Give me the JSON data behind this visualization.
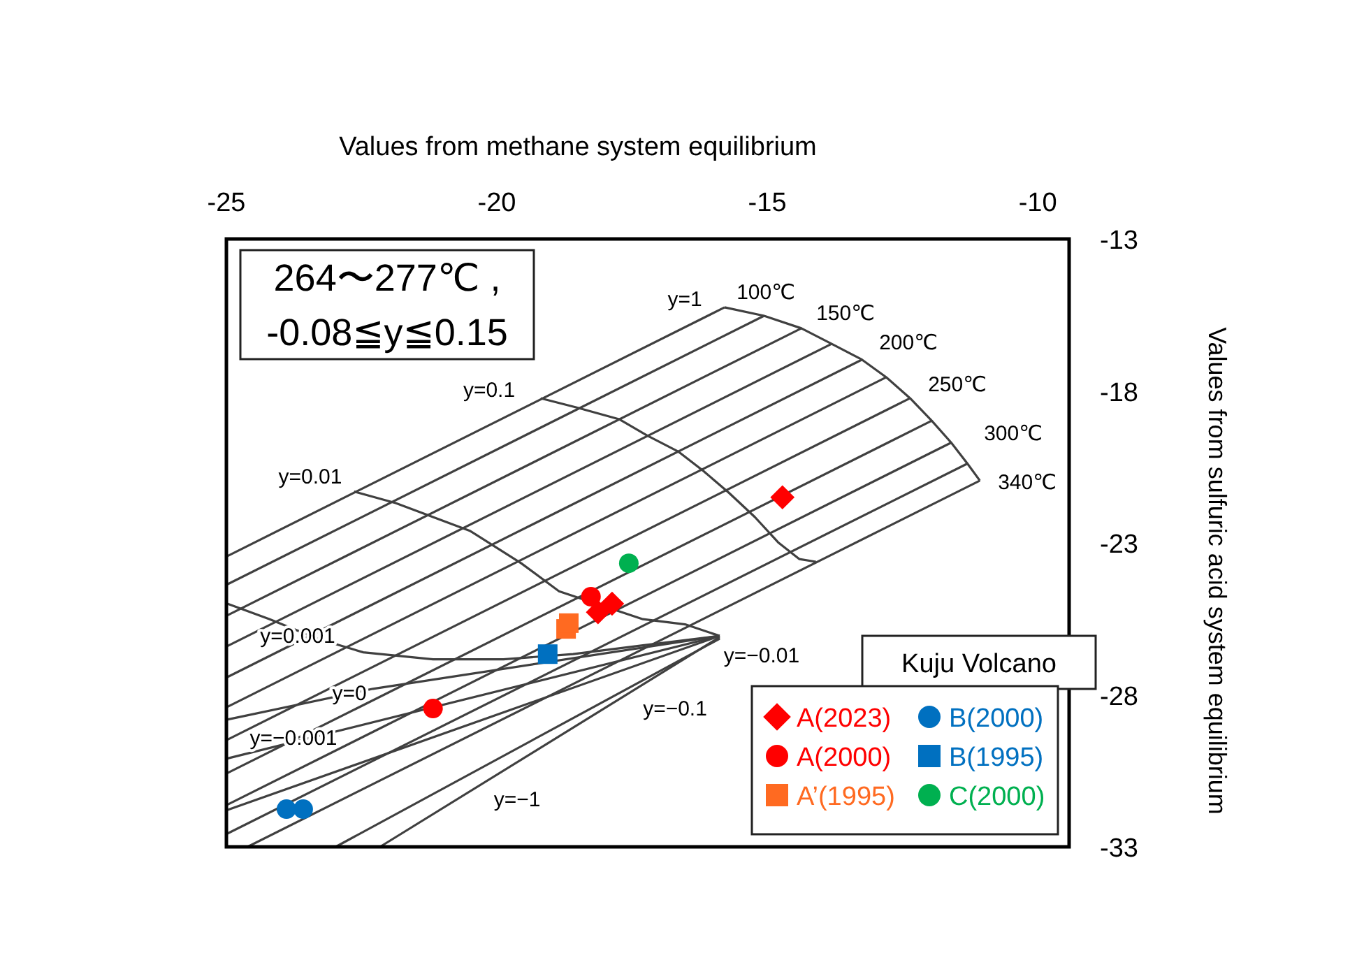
{
  "chart_data": {
    "type": "scatter",
    "xlabel": "Values from methane system equilibrium",
    "ylabel": "Values from sulfuric acid system equilibrium",
    "xlim": [
      -25,
      -9.42
    ],
    "xticks": [
      -25,
      -20,
      -15,
      -10
    ],
    "ylim": [
      -33,
      -13
    ],
    "yticks": [
      -13,
      -18,
      -23,
      -28,
      -33
    ],
    "legend": "bottom right",
    "series": [
      {
        "type": "line",
        "color": "#404040",
        "x": [
          -15.79,
          -25
        ],
        "values": [
          -15.25,
          -23.45
        ]
      },
      {
        "type": "line",
        "color": "#404040",
        "x": [
          -15.06,
          -25
        ],
        "values": [
          -15.53,
          -24.38
        ]
      },
      {
        "type": "line",
        "color": "#404040",
        "x": [
          -14.37,
          -25
        ],
        "values": [
          -15.94,
          -25.4
        ]
      },
      {
        "type": "line",
        "color": "#404040",
        "x": [
          -13.81,
          -25
        ],
        "values": [
          -16.45,
          -26.41
        ]
      },
      {
        "type": "line",
        "color": "#404040",
        "x": [
          -13.25,
          -25
        ],
        "values": [
          -16.97,
          -27.43
        ]
      },
      {
        "type": "line",
        "color": "#404040",
        "x": [
          -12.8,
          -25
        ],
        "values": [
          -17.55,
          -28.41
        ]
      },
      {
        "type": "line",
        "color": "#404040",
        "x": [
          -12.36,
          -25
        ],
        "values": [
          -18.24,
          -29.49
        ]
      },
      {
        "type": "line",
        "color": "#404040",
        "x": [
          -11.96,
          -25
        ],
        "values": [
          -18.98,
          -30.59
        ]
      },
      {
        "type": "line",
        "color": "#404040",
        "x": [
          -11.6,
          -25
        ],
        "values": [
          -19.7,
          -31.63
        ]
      },
      {
        "type": "line",
        "color": "#404040",
        "x": [
          -11.3,
          -25
        ],
        "values": [
          -20.39,
          -32.58
        ]
      },
      {
        "type": "line",
        "color": "#404040",
        "x": [
          -11.07,
          -24.61
        ],
        "values": [
          -20.95,
          -33
        ]
      },
      {
        "type": "line",
        "color": "#404040",
        "x": [
          -15.79,
          -15.06,
          -14.37,
          -13.81,
          -13.25,
          -12.8,
          -12.36,
          -11.96,
          -11.6,
          -11.3,
          -11.07
        ],
        "values": [
          -15.25,
          -15.53,
          -15.94,
          -16.45,
          -16.97,
          -17.55,
          -18.24,
          -18.98,
          -19.7,
          -20.39,
          -20.95
        ]
      },
      {
        "type": "line",
        "color": "#404040",
        "x": [
          -19.19,
          -18.51,
          -17.74,
          -17.22,
          -16.65,
          -16.19,
          -15.71,
          -15.23,
          -14.8,
          -14.41,
          -14.1
        ],
        "values": [
          -18.24,
          -18.55,
          -18.93,
          -19.47,
          -19.99,
          -20.62,
          -21.35,
          -22.15,
          -22.98,
          -23.53,
          -23.62
        ]
      },
      {
        "type": "line",
        "color": "#404040",
        "x": [
          -22.64,
          -21.87,
          -21.18,
          -20.49,
          -19.55,
          -18.85,
          -17.3,
          -16.52,
          -15.88
        ],
        "values": [
          -21.31,
          -21.69,
          -22.15,
          -22.61,
          -23.67,
          -24.59,
          -25.51,
          -25.68,
          -26.06
        ]
      },
      {
        "type": "line",
        "color": "#404040",
        "x": [
          -25,
          -24.2,
          -23.32,
          -22.47,
          -21.18,
          -19.88,
          -18.59,
          -17.3,
          -15.88
        ],
        "values": [
          -24.99,
          -25.51,
          -26.15,
          -26.6,
          -26.83,
          -26.83,
          -26.66,
          -26.37,
          -26.06
        ]
      },
      {
        "type": "line",
        "color": "#404040",
        "x": [
          -25,
          -22.29,
          -15.88
        ],
        "values": [
          -28.82,
          -27.8,
          -26.06
        ]
      },
      {
        "type": "line",
        "color": "#404040",
        "x": [
          -25,
          -15.88
        ],
        "values": [
          -30.1,
          -26.06
        ]
      },
      {
        "type": "line",
        "color": "#404040",
        "x": [
          -25,
          -15.88
        ],
        "values": [
          -31.8,
          -26.06
        ]
      },
      {
        "type": "line",
        "color": "#404040",
        "x": [
          -22.16,
          -15.88
        ],
        "values": [
          -33,
          -26.1
        ]
      },
      {
        "type": "line",
        "color": "#404040",
        "x": [
          -22.98,
          -15.88
        ],
        "values": [
          -33,
          -26.15
        ]
      },
      {
        "name": "A(2023)",
        "color": "#ff0000",
        "marker": "diamond",
        "x": [
          -14.72,
          -18.13,
          -17.87
        ],
        "values": [
          -21.5,
          -25.28,
          -25.0
        ]
      },
      {
        "name": "A(2000)",
        "color": "#ff0000",
        "marker": "circle",
        "x": [
          -18.26,
          -21.18
        ],
        "values": [
          -24.77,
          -28.45
        ]
      },
      {
        "name": "A’(1995)",
        "color": "#ff6a21",
        "marker": "square",
        "x": [
          -18.72,
          -18.67
        ],
        "values": [
          -25.83,
          -25.64
        ]
      },
      {
        "name": "B(2000)",
        "color": "#0070c0",
        "marker": "circle",
        "x": [
          -23.89,
          -23.58
        ],
        "values": [
          -31.76,
          -31.76
        ]
      },
      {
        "name": "B(1995)",
        "color": "#0070c0",
        "marker": "square",
        "x": [
          -19.06
        ],
        "values": [
          -26.66
        ]
      },
      {
        "name": "C(2000)",
        "color": "#00b050",
        "marker": "circle",
        "x": [
          -17.56
        ],
        "values": [
          -23.67
        ]
      }
    ],
    "annotations": [
      "264〜277℃ ,\n-0.08≦y≦0.15",
      "Kuju Volcano",
      "y=1",
      "100℃",
      "150℃",
      "200℃",
      "250℃",
      "300℃",
      "340℃",
      "y=0.1",
      "y=0.01",
      "y=0.001",
      "y=0",
      "y=−0.001",
      "y=−0.01",
      "y=−0.1",
      "y=−1"
    ]
  }
}
